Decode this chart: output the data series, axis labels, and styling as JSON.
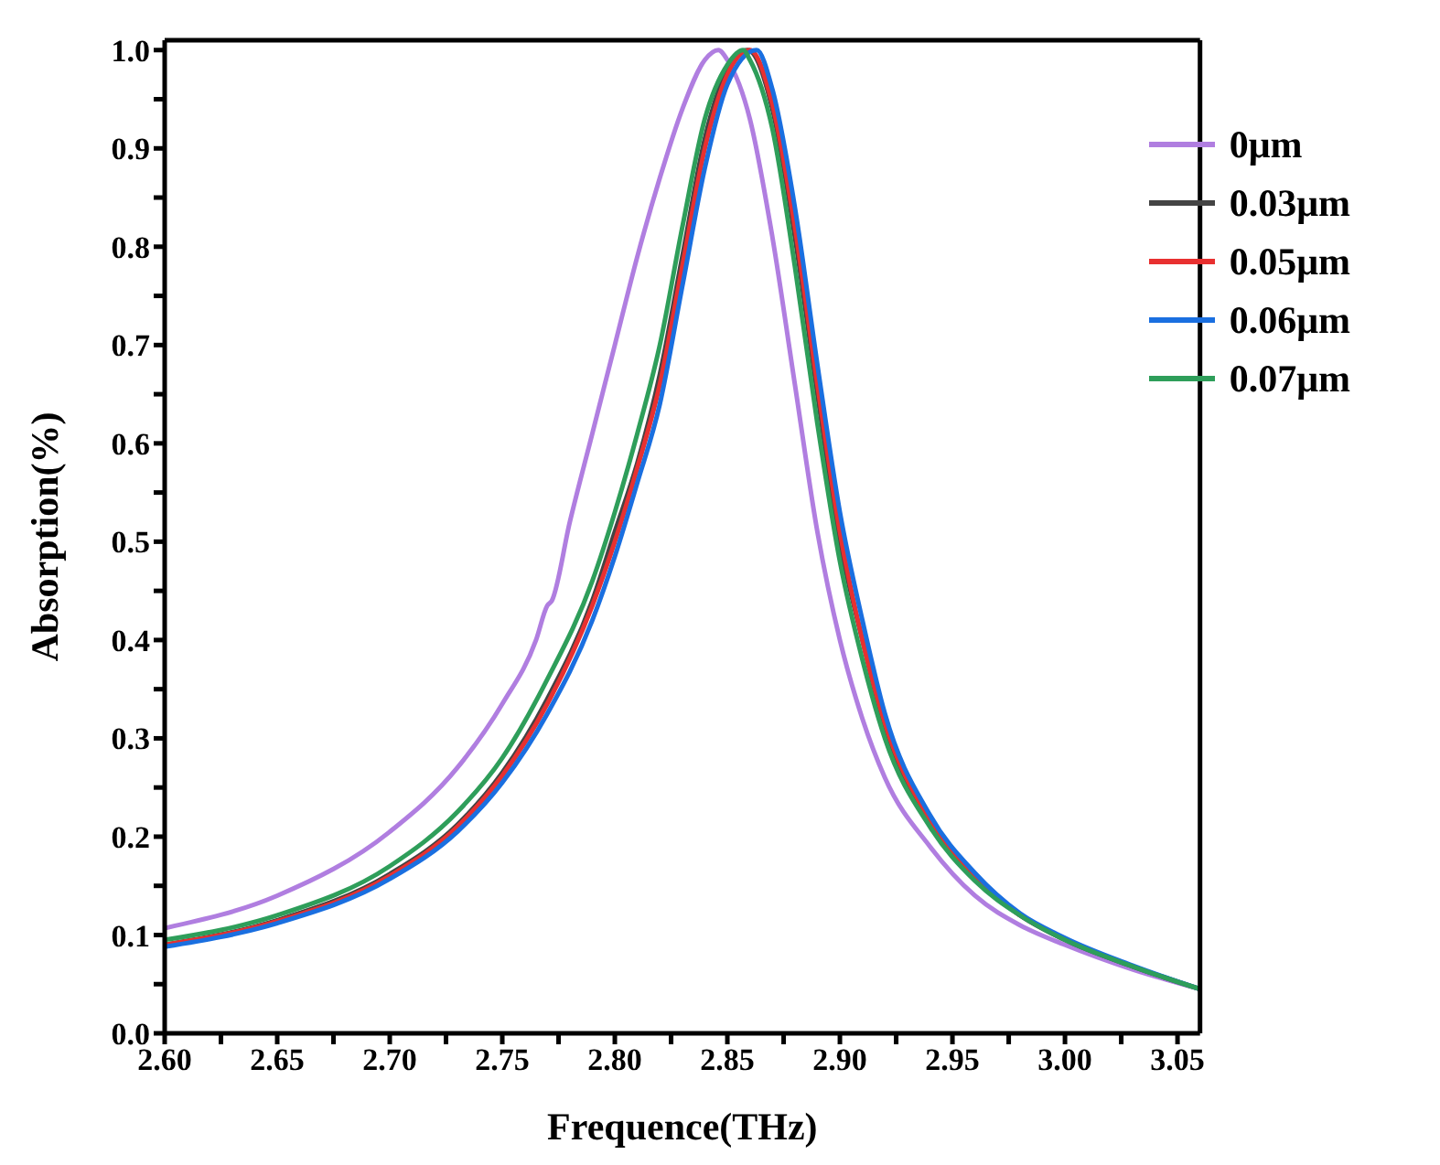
{
  "chart_data": {
    "type": "line",
    "xlabel": "Frequence(THz)",
    "ylabel": "Absorption(%)",
    "xlim": [
      2.6,
      3.06
    ],
    "ylim": [
      0,
      1.01
    ],
    "xticks": [
      {
        "value": 2.6,
        "label": "2.60"
      },
      {
        "value": 2.625,
        "label": null
      },
      {
        "value": 2.65,
        "label": "2.65"
      },
      {
        "value": 2.675,
        "label": null
      },
      {
        "value": 2.7,
        "label": "2.70"
      },
      {
        "value": 2.725,
        "label": null
      },
      {
        "value": 2.75,
        "label": "2.75"
      },
      {
        "value": 2.775,
        "label": null
      },
      {
        "value": 2.8,
        "label": "2.80"
      },
      {
        "value": 2.825,
        "label": null
      },
      {
        "value": 2.85,
        "label": "2.85"
      },
      {
        "value": 2.875,
        "label": null
      },
      {
        "value": 2.9,
        "label": "2.90"
      },
      {
        "value": 2.925,
        "label": null
      },
      {
        "value": 2.95,
        "label": "2.95"
      },
      {
        "value": 2.975,
        "label": null
      },
      {
        "value": 3.0,
        "label": "3.00"
      },
      {
        "value": 3.025,
        "label": null
      },
      {
        "value": 3.05,
        "label": "3.05"
      }
    ],
    "yticks": [
      {
        "value": 0,
        "label": "0.0"
      },
      {
        "value": 0.05,
        "label": null
      },
      {
        "value": 0.1,
        "label": "0.1"
      },
      {
        "value": 0.15,
        "label": null
      },
      {
        "value": 0.2,
        "label": "0.2"
      },
      {
        "value": 0.25,
        "label": null
      },
      {
        "value": 0.3,
        "label": "0.3"
      },
      {
        "value": 0.35,
        "label": null
      },
      {
        "value": 0.4,
        "label": "0.4"
      },
      {
        "value": 0.45,
        "label": null
      },
      {
        "value": 0.5,
        "label": "0.5"
      },
      {
        "value": 0.55,
        "label": null
      },
      {
        "value": 0.6,
        "label": "0.6"
      },
      {
        "value": 0.65,
        "label": null
      },
      {
        "value": 0.7,
        "label": "0.7"
      },
      {
        "value": 0.75,
        "label": null
      },
      {
        "value": 0.8,
        "label": "0.8"
      },
      {
        "value": 0.85,
        "label": null
      },
      {
        "value": 0.9,
        "label": "0.9"
      },
      {
        "value": 0.95,
        "label": null
      },
      {
        "value": 1.0,
        "label": "1.0"
      }
    ],
    "legend": "top right",
    "grid": false,
    "marker": "none",
    "line_style": "solid",
    "series": [
      {
        "name": "0μm",
        "color": "#b07ee0",
        "x": [
          2.6,
          2.65,
          2.7,
          2.73,
          2.75,
          2.765,
          2.77,
          2.772,
          2.78,
          2.79,
          2.8,
          2.81,
          2.82,
          2.83,
          2.84,
          2.846,
          2.85,
          2.86,
          2.87,
          2.88,
          2.89,
          2.9,
          2.91,
          2.92,
          2.94,
          2.96,
          2.98,
          3.0,
          3.03,
          3.06
        ],
        "values": [
          0.107,
          0.14,
          0.205,
          0.27,
          0.335,
          0.4,
          0.435,
          0.44,
          0.52,
          0.61,
          0.7,
          0.79,
          0.87,
          0.94,
          0.99,
          1.0,
          0.99,
          0.93,
          0.81,
          0.66,
          0.51,
          0.4,
          0.32,
          0.26,
          0.19,
          0.14,
          0.11,
          0.09,
          0.065,
          0.045
        ]
      },
      {
        "name": "0.03μm",
        "color": "#444444",
        "x": [
          2.6,
          2.65,
          2.7,
          2.73,
          2.75,
          2.77,
          2.79,
          2.8,
          2.81,
          2.82,
          2.83,
          2.84,
          2.85,
          2.859,
          2.87,
          2.88,
          2.89,
          2.9,
          2.91,
          2.92,
          2.94,
          2.96,
          2.98,
          3.0,
          3.03,
          3.06
        ],
        "values": [
          0.09,
          0.115,
          0.162,
          0.212,
          0.265,
          0.34,
          0.44,
          0.51,
          0.58,
          0.67,
          0.79,
          0.91,
          0.98,
          1.0,
          0.94,
          0.81,
          0.65,
          0.5,
          0.4,
          0.31,
          0.215,
          0.158,
          0.12,
          0.095,
          0.068,
          0.045
        ]
      },
      {
        "name": "0.05μm",
        "color": "#e83030",
        "x": [
          2.6,
          2.65,
          2.7,
          2.73,
          2.75,
          2.77,
          2.79,
          2.8,
          2.81,
          2.82,
          2.83,
          2.84,
          2.85,
          2.86,
          2.87,
          2.88,
          2.89,
          2.9,
          2.91,
          2.92,
          2.94,
          2.96,
          2.98
        ],
        "values": [
          0.09,
          0.114,
          0.16,
          0.21,
          0.262,
          0.335,
          0.435,
          0.5,
          0.575,
          0.66,
          0.78,
          0.9,
          0.975,
          1.0,
          0.945,
          0.82,
          0.66,
          0.51,
          0.4,
          0.315,
          0.217,
          0.16,
          0.12
        ]
      },
      {
        "name": "0.06μm",
        "color": "#1a6fe0",
        "x": [
          2.6,
          2.65,
          2.7,
          2.73,
          2.75,
          2.77,
          2.79,
          2.8,
          2.81,
          2.82,
          2.83,
          2.84,
          2.85,
          2.863,
          2.87,
          2.88,
          2.89,
          2.9,
          2.91,
          2.92,
          2.94,
          2.96,
          2.98,
          3.0,
          3.03,
          3.06
        ],
        "values": [
          0.088,
          0.112,
          0.157,
          0.205,
          0.255,
          0.325,
          0.42,
          0.485,
          0.56,
          0.64,
          0.76,
          0.88,
          0.965,
          1.0,
          0.96,
          0.84,
          0.68,
          0.53,
          0.42,
          0.325,
          0.222,
          0.163,
          0.122,
          0.097,
          0.069,
          0.045
        ]
      },
      {
        "name": "0.07μm",
        "color": "#2e9e5a",
        "x": [
          2.6,
          2.65,
          2.7,
          2.73,
          2.75,
          2.77,
          2.79,
          2.8,
          2.81,
          2.82,
          2.83,
          2.84,
          2.85,
          2.857,
          2.86,
          2.87,
          2.88,
          2.89,
          2.9,
          2.91,
          2.92,
          2.94,
          2.96,
          2.98,
          3.0,
          3.03,
          3.06
        ],
        "values": [
          0.095,
          0.12,
          0.17,
          0.225,
          0.28,
          0.36,
          0.46,
          0.53,
          0.61,
          0.7,
          0.82,
          0.93,
          0.985,
          1.0,
          0.99,
          0.92,
          0.78,
          0.62,
          0.48,
          0.38,
          0.3,
          0.21,
          0.155,
          0.12,
          0.095,
          0.068,
          0.045
        ]
      }
    ]
  }
}
